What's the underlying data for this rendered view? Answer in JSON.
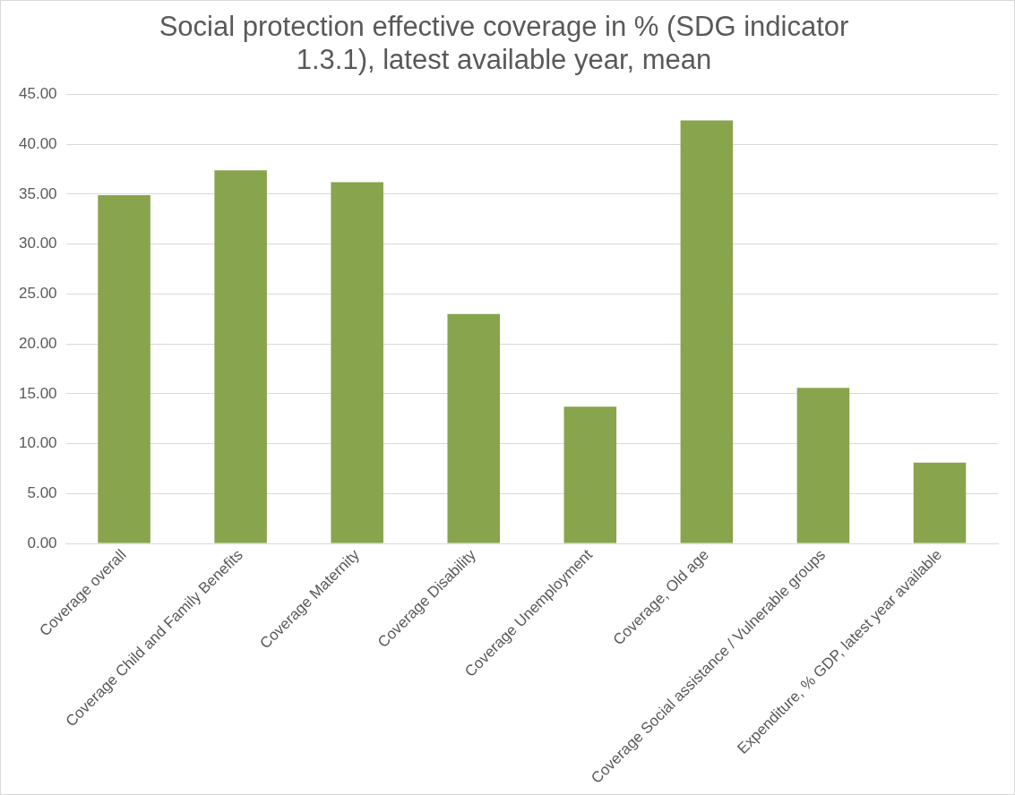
{
  "chart_data": {
    "type": "bar",
    "title": "Social protection effective coverage in % (SDG indicator 1.3.1), latest available year, mean",
    "categories": [
      "Coverage overall",
      "Coverage Child and Family Benefits",
      "Coverage Maternity",
      "Coverage Disability",
      "Coverage Unemployment",
      "Coverage, Old age",
      "Coverage Social assistance / Vulnerable groups",
      "Expenditure, % GDP, latest year available"
    ],
    "values": [
      34.9,
      37.4,
      36.2,
      23.0,
      13.7,
      42.4,
      15.6,
      8.1
    ],
    "color": "#88a44c",
    "ylim": [
      0,
      45
    ],
    "yticks": [
      {
        "value": 0,
        "label": "0.00"
      },
      {
        "value": 5,
        "label": "5.00"
      },
      {
        "value": 10,
        "label": "10.00"
      },
      {
        "value": 15,
        "label": "15.00"
      },
      {
        "value": 20,
        "label": "20.00"
      },
      {
        "value": 25,
        "label": "25.00"
      },
      {
        "value": 30,
        "label": "30.00"
      },
      {
        "value": 35,
        "label": "35.00"
      },
      {
        "value": 40,
        "label": "40.00"
      },
      {
        "value": 45,
        "label": "45.00"
      }
    ],
    "grid": "y"
  }
}
